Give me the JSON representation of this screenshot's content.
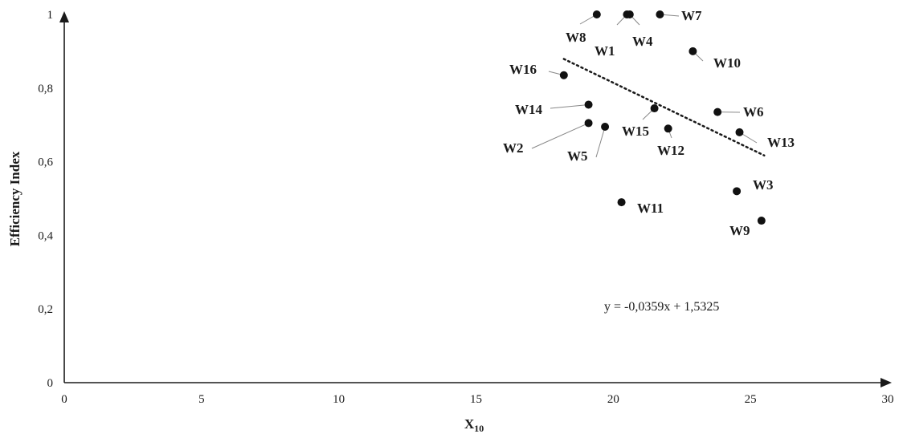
{
  "chart_data": {
    "type": "scatter",
    "xlabel_main": "X",
    "xlabel_sub": "10",
    "ylabel": "Efficiency Index",
    "xlim": [
      0,
      30
    ],
    "ylim": [
      0,
      1
    ],
    "x_ticks": [
      0,
      5,
      10,
      15,
      20,
      25,
      30
    ],
    "y_ticks": [
      0,
      0.2,
      0.4,
      0.6,
      0.8,
      1
    ],
    "x_tick_labels": [
      "0",
      "5",
      "10",
      "15",
      "20",
      "25",
      "30"
    ],
    "y_tick_labels": [
      "0",
      "0,2",
      "0,4",
      "0,6",
      "0,8",
      "1"
    ],
    "grid": false,
    "points": [
      {
        "label": "W1",
        "x": 20.5,
        "y": 1.0
      },
      {
        "label": "W2",
        "x": 19.1,
        "y": 0.705
      },
      {
        "label": "W3",
        "x": 24.5,
        "y": 0.52
      },
      {
        "label": "W4",
        "x": 20.6,
        "y": 1.0
      },
      {
        "label": "W5",
        "x": 19.7,
        "y": 0.695
      },
      {
        "label": "W6",
        "x": 23.8,
        "y": 0.735
      },
      {
        "label": "W7",
        "x": 21.7,
        "y": 1.0
      },
      {
        "label": "W8",
        "x": 19.4,
        "y": 1.0
      },
      {
        "label": "W9",
        "x": 25.4,
        "y": 0.44
      },
      {
        "label": "W10",
        "x": 22.9,
        "y": 0.9
      },
      {
        "label": "W11",
        "x": 20.3,
        "y": 0.49
      },
      {
        "label": "W12",
        "x": 22.0,
        "y": 0.69
      },
      {
        "label": "W13",
        "x": 24.6,
        "y": 0.68
      },
      {
        "label": "W14",
        "x": 19.1,
        "y": 0.755
      },
      {
        "label": "W15",
        "x": 21.5,
        "y": 0.745
      },
      {
        "label": "W16",
        "x": 18.2,
        "y": 0.835
      }
    ],
    "trendline": {
      "style": "dotted",
      "slope": -0.0359,
      "intercept": 1.5325,
      "x_start": 18.2,
      "x_end": 25.5,
      "equation_text": "y = -0,0359x + 1,5325"
    }
  }
}
